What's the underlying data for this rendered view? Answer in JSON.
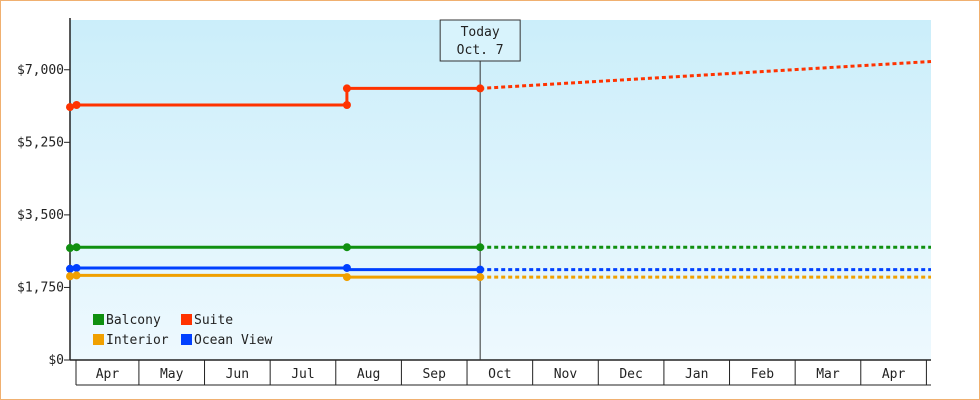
{
  "chart_data": {
    "type": "line",
    "x_unit": "month",
    "y_ticks": [
      {
        "value": 0,
        "label": "$0"
      },
      {
        "value": 1750,
        "label": "$1,750"
      },
      {
        "value": 3500,
        "label": "$3,500"
      },
      {
        "value": 5250,
        "label": "$5,250"
      },
      {
        "value": 7000,
        "label": "$7,000"
      }
    ],
    "ylim": [
      0,
      8200
    ],
    "xlim": [
      2.95,
      16.07
    ],
    "months": [
      {
        "label": "Apr",
        "from": 3,
        "to": 4
      },
      {
        "label": "May",
        "from": 4,
        "to": 5
      },
      {
        "label": "Jun",
        "from": 5,
        "to": 6
      },
      {
        "label": "Jul",
        "from": 6,
        "to": 7
      },
      {
        "label": "Aug",
        "from": 7,
        "to": 8
      },
      {
        "label": "Sep",
        "from": 8,
        "to": 9
      },
      {
        "label": "Oct",
        "from": 9,
        "to": 10
      },
      {
        "label": "Nov",
        "from": 10,
        "to": 11
      },
      {
        "label": "Dec",
        "from": 11,
        "to": 12
      },
      {
        "label": "Jan",
        "from": 12,
        "to": 13
      },
      {
        "label": "Feb",
        "from": 13,
        "to": 14
      },
      {
        "label": "Mar",
        "from": 14,
        "to": 15
      },
      {
        "label": "Apr",
        "from": 15,
        "to": 16
      }
    ],
    "today": {
      "x": 9.2,
      "line1": "Today",
      "line2": "Oct. 7"
    },
    "series": [
      {
        "name": "Suite",
        "color": "#ff3300",
        "points": [
          [
            2.95,
            6100
          ],
          [
            3.05,
            6150
          ],
          [
            7.17,
            6150
          ],
          [
            7.17,
            6550
          ],
          [
            9.2,
            6550
          ]
        ],
        "markers": [
          [
            2.95,
            6100
          ],
          [
            3.05,
            6150
          ],
          [
            7.17,
            6150
          ],
          [
            7.17,
            6550
          ],
          [
            9.2,
            6550
          ]
        ],
        "forecast": [
          [
            9.2,
            6550
          ],
          [
            16.07,
            7200
          ]
        ]
      },
      {
        "name": "Balcony",
        "color": "#109010",
        "points": [
          [
            2.95,
            2700
          ],
          [
            3.05,
            2720
          ],
          [
            9.2,
            2720
          ]
        ],
        "markers": [
          [
            2.95,
            2700
          ],
          [
            3.05,
            2720
          ],
          [
            7.17,
            2720
          ],
          [
            9.2,
            2720
          ]
        ],
        "forecast": [
          [
            9.2,
            2720
          ],
          [
            16.07,
            2720
          ]
        ]
      },
      {
        "name": "Ocean View",
        "color": "#0040ff",
        "points": [
          [
            2.95,
            2200
          ],
          [
            3.05,
            2220
          ],
          [
            7.17,
            2220
          ],
          [
            7.17,
            2180
          ],
          [
            9.2,
            2180
          ]
        ],
        "markers": [
          [
            2.95,
            2200
          ],
          [
            3.05,
            2220
          ],
          [
            7.17,
            2220
          ],
          [
            9.2,
            2180
          ]
        ],
        "forecast": [
          [
            9.2,
            2180
          ],
          [
            16.07,
            2180
          ]
        ]
      },
      {
        "name": "Interior",
        "color": "#f0a000",
        "points": [
          [
            2.95,
            2020
          ],
          [
            3.05,
            2040
          ],
          [
            7.17,
            2040
          ],
          [
            7.17,
            2000
          ],
          [
            9.2,
            2000
          ]
        ],
        "markers": [
          [
            2.95,
            2020
          ],
          [
            3.05,
            2040
          ],
          [
            7.17,
            2000
          ],
          [
            9.2,
            2000
          ]
        ],
        "forecast": [
          [
            9.2,
            2000
          ],
          [
            16.07,
            2000
          ]
        ]
      }
    ],
    "legend": [
      {
        "name": "Balcony",
        "color": "#109010"
      },
      {
        "name": "Suite",
        "color": "#ff3300"
      },
      {
        "name": "Interior",
        "color": "#f0a000"
      },
      {
        "name": "Ocean View",
        "color": "#0040ff"
      }
    ]
  }
}
